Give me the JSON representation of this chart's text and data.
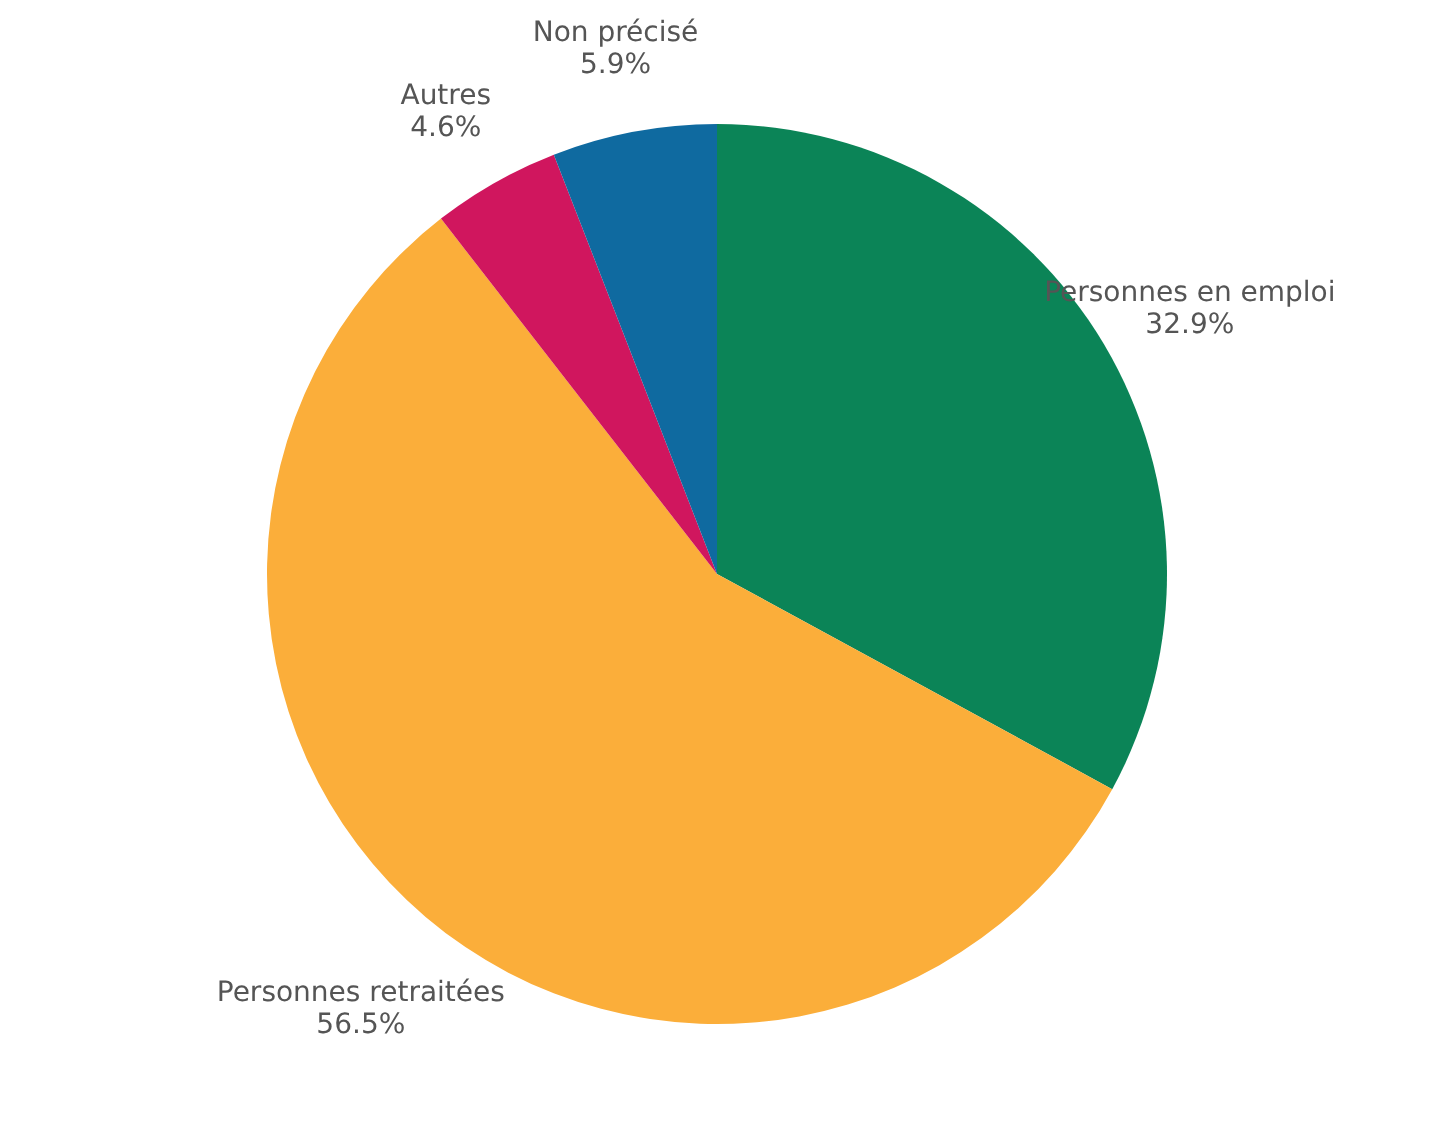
{
  "chart_data": {
    "type": "pie",
    "categories": [
      "Personnes en emploi",
      "Personnes retraitées",
      "Autres",
      "Non précisé"
    ],
    "values": [
      32.9,
      56.5,
      4.6,
      5.9
    ],
    "value_labels": [
      "32.9%",
      "56.5%",
      "4.6%",
      "5.9%"
    ],
    "colors": [
      "#0b8457",
      "#fbae3a",
      "#d0165e",
      "#0f6aa0"
    ],
    "legend": false
  }
}
